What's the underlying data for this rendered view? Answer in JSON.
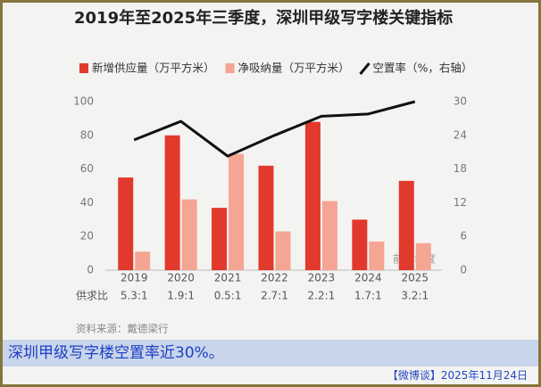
{
  "chart_data": {
    "type": "bar",
    "title": "2019年至2025年三季度，深圳甲级写字楼关键指标",
    "categories": [
      "2019",
      "2020",
      "2021",
      "2022",
      "2023",
      "2024",
      "2025"
    ],
    "series": [
      {
        "name": "新增供应量（万平方米）",
        "type": "bar",
        "color": "#e2392d",
        "values": [
          55,
          80,
          37,
          62,
          88,
          30,
          53
        ]
      },
      {
        "name": "净吸纳量（万平方米）",
        "type": "bar",
        "color": "#f5a593",
        "values": [
          11,
          42,
          69,
          23,
          41,
          17,
          16
        ]
      },
      {
        "name": "空置率（%，右轴）",
        "type": "line",
        "axis": "y2",
        "color": "#111111",
        "values": [
          23.2,
          26.5,
          20.3,
          24,
          27.4,
          27.8,
          30
        ]
      }
    ],
    "ylim": [
      0,
      100
    ],
    "yticks": [
      0,
      20,
      40,
      60,
      80,
      100
    ],
    "y2lim": [
      0,
      30
    ],
    "y2ticks": [
      0,
      6,
      12,
      18,
      24,
      30
    ],
    "ratio_label": "供求比",
    "ratios": [
      "5.3:1",
      "1.9:1",
      "0.5:1",
      "2.7:1",
      "2.2:1",
      "1.7:1",
      "3.2:1"
    ],
    "annotation": "前三季度",
    "source": "资料来源：戴德梁行"
  },
  "caption": "深圳甲级写字楼空置率近30%。",
  "footer": "【微博谈】2025年11月24日"
}
